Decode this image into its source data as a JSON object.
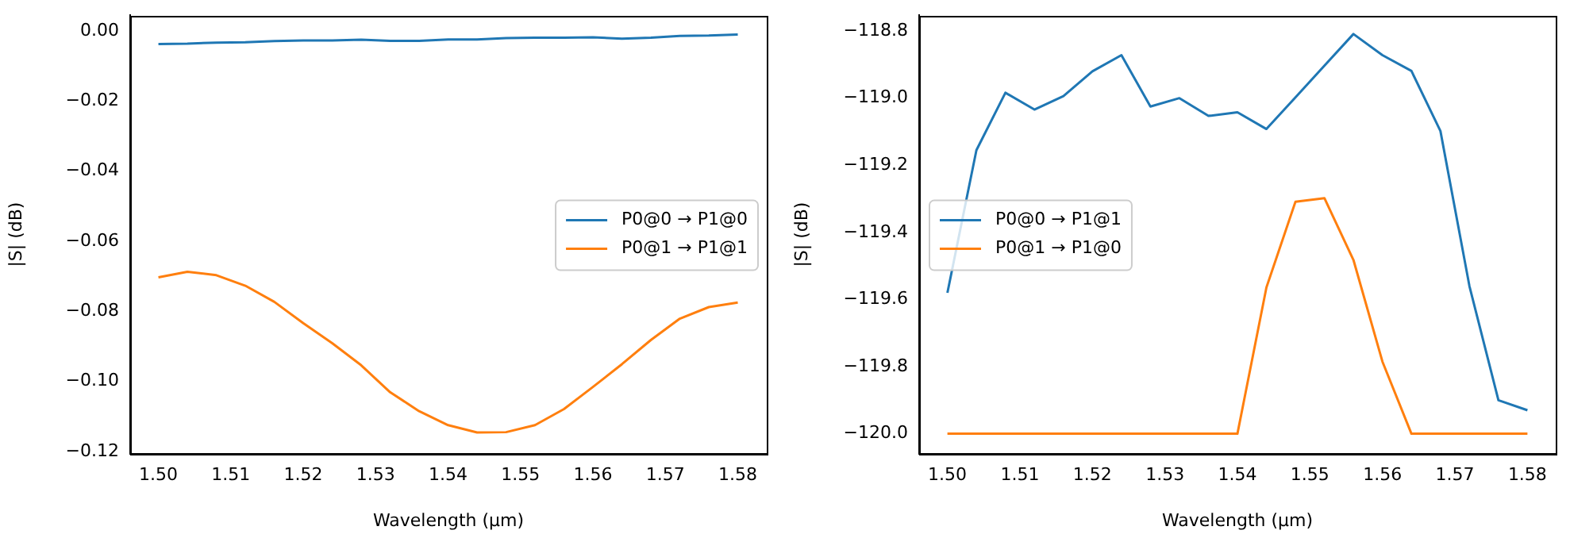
{
  "chart_data": [
    {
      "type": "line",
      "xlabel": "Wavelength (µm)",
      "ylabel": "|S| (dB)",
      "legend": "center right",
      "grid": false,
      "x": [
        1.5,
        1.504,
        1.508,
        1.512,
        1.516,
        1.52,
        1.524,
        1.528,
        1.532,
        1.536,
        1.54,
        1.544,
        1.548,
        1.552,
        1.556,
        1.56,
        1.564,
        1.568,
        1.572,
        1.576,
        1.58
      ],
      "xlim": [
        1.4961,
        1.584
      ],
      "xticks": [
        {
          "value": 1.5,
          "label": "1.50"
        },
        1.51,
        1.52,
        1.53,
        1.54,
        1.55,
        1.56,
        1.57,
        1.58
      ],
      "ylim": [
        -0.1207,
        0.0045
      ],
      "yticks": [
        {
          "value": -0.12,
          "label": "−0.12"
        },
        {
          "value": -0.1,
          "label": "−0.10"
        },
        {
          "value": -0.08,
          "label": "−0.08"
        },
        {
          "value": -0.06,
          "label": "−0.06"
        },
        {
          "value": -0.04,
          "label": "−0.04"
        },
        {
          "value": -0.02,
          "label": "−0.02"
        },
        {
          "value": 0,
          "label": "0.00"
        }
      ],
      "series": [
        {
          "name": "P0@0 → P1@0",
          "color": "#1f77b4",
          "values": [
            -0.0037,
            -0.0036,
            -0.0033,
            -0.0032,
            -0.0029,
            -0.0027,
            -0.0027,
            -0.0025,
            -0.0028,
            -0.0028,
            -0.0024,
            -0.0024,
            -0.002,
            -0.0019,
            -0.0019,
            -0.0018,
            -0.0022,
            -0.0019,
            -0.0014,
            -0.0013,
            -0.001
          ]
        },
        {
          "name": "P0@1 → P1@1",
          "color": "#ff7f0e",
          "values": [
            -0.0703,
            -0.0687,
            -0.0697,
            -0.0727,
            -0.0773,
            -0.0834,
            -0.0891,
            -0.0954,
            -0.1031,
            -0.1085,
            -0.1125,
            -0.1146,
            -0.1145,
            -0.1125,
            -0.1079,
            -0.1016,
            -0.0951,
            -0.0882,
            -0.0821,
            -0.0788,
            -0.0775
          ]
        }
      ]
    },
    {
      "type": "line",
      "xlabel": "Wavelength (µm)",
      "ylabel": "|S| (dB)",
      "legend": "center left",
      "grid": false,
      "x": [
        1.5,
        1.504,
        1.508,
        1.512,
        1.516,
        1.52,
        1.524,
        1.528,
        1.532,
        1.536,
        1.54,
        1.544,
        1.548,
        1.552,
        1.556,
        1.56,
        1.564,
        1.568,
        1.572,
        1.576,
        1.58
      ],
      "xlim": [
        1.4961,
        1.5839
      ],
      "xticks": [
        {
          "value": 1.5,
          "label": "1.50"
        },
        1.51,
        1.52,
        1.53,
        1.54,
        1.55,
        1.56,
        1.57,
        1.58
      ],
      "ylim": [
        -120.06,
        -118.753
      ],
      "yticks": [
        {
          "value": -120,
          "label": "−120.0"
        },
        {
          "value": -119.8,
          "label": "−119.8"
        },
        {
          "value": -119.6,
          "label": "−119.6"
        },
        {
          "value": -119.4,
          "label": "−119.4"
        },
        {
          "value": -119.2,
          "label": "−119.2"
        },
        {
          "value": -119,
          "label": "−119.0"
        },
        {
          "value": -118.8,
          "label": "−118.8"
        }
      ],
      "series": [
        {
          "name": "P0@0 → P1@1",
          "color": "#1f77b4",
          "values": [
            -119.58,
            -119.155,
            -118.984,
            -119.034,
            -118.994,
            -118.92,
            -118.872,
            -119.025,
            -119.0,
            -119.053,
            -119.042,
            -119.092,
            -118.998,
            -118.903,
            -118.809,
            -118.872,
            -118.919,
            -119.098,
            -119.56,
            -119.9,
            -119.93
          ]
        },
        {
          "name": "P0@1 → P1@0",
          "color": "#ff7f0e",
          "values": [
            -120,
            -120,
            -120,
            -120,
            -120,
            -120,
            -120,
            -120,
            -120,
            -120,
            -120,
            -119.564,
            -119.309,
            -119.298,
            -119.482,
            -119.785,
            -120,
            -120,
            -120,
            -120,
            -120
          ]
        }
      ]
    }
  ]
}
